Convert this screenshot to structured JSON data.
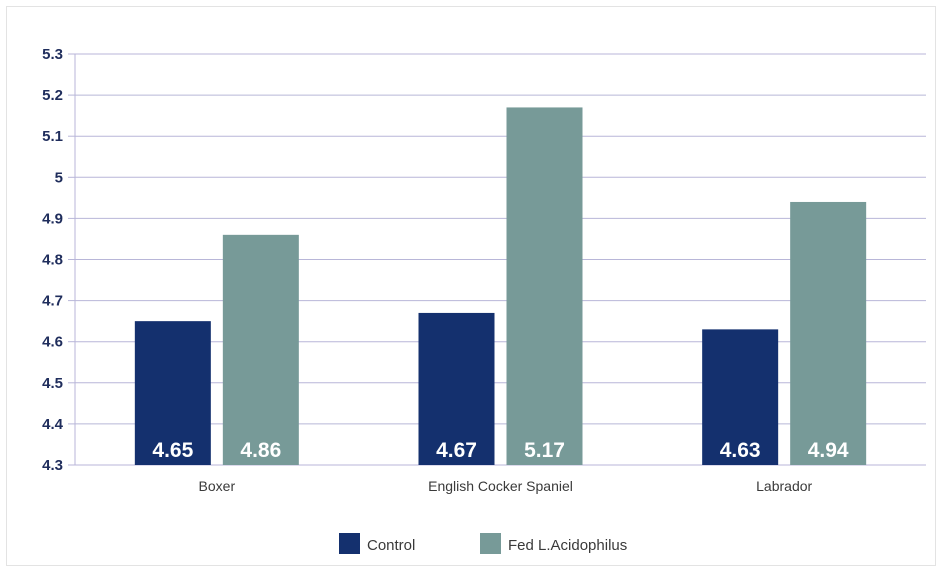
{
  "chart_data": {
    "type": "bar",
    "categories": [
      "Boxer",
      "English Cocker Spaniel",
      "Labrador"
    ],
    "series": [
      {
        "name": "Control",
        "values": [
          4.65,
          4.67,
          4.63
        ],
        "labels": [
          "4.65",
          "4.67",
          "4.63"
        ],
        "color": "#14306e"
      },
      {
        "name": "Fed L.Acidophilus",
        "values": [
          4.86,
          5.17,
          4.94
        ],
        "labels": [
          "4.86",
          "5.17",
          "4.94"
        ],
        "color": "#779a98"
      }
    ],
    "y_ticks": [
      "4.3",
      "4.4",
      "4.5",
      "4.6",
      "4.7",
      "4.8",
      "4.9",
      "5",
      "5.1",
      "5.2",
      "5.3"
    ],
    "ylim": [
      4.3,
      5.3
    ],
    "grid": true,
    "gridline_color": "#b8b6d8",
    "legend_position": "bottom-center",
    "title": "",
    "xlabel": "",
    "ylabel": ""
  }
}
